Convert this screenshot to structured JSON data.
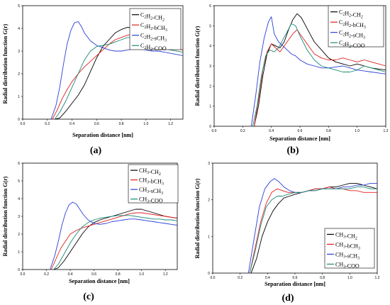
{
  "chart_data": [
    {
      "type": "line",
      "panel_label": "(a)",
      "xlabel": "Separation distance [nm]",
      "ylabel": "Radial distribution function G(r)",
      "xlim": [
        0.0,
        1.3
      ],
      "ylim": [
        0,
        5
      ],
      "xticks": [
        0.0,
        0.2,
        0.4,
        0.6,
        0.8,
        1.0,
        1.2
      ],
      "xticklabels": [
        "0.0",
        "0.2",
        "0.4",
        "0.6",
        "0.8",
        "1.0",
        "1.2"
      ],
      "yticks": [
        0,
        1,
        2,
        3,
        4,
        5
      ],
      "yticklabels": [
        "0",
        "1",
        "2",
        "3",
        "4",
        "5"
      ],
      "legend_position": "top-right",
      "series": [
        {
          "name": "C2H2-CH2",
          "color": "#000000",
          "x": [
            0.26,
            0.3,
            0.35,
            0.4,
            0.45,
            0.5,
            0.55,
            0.6,
            0.65,
            0.7,
            0.75,
            0.8,
            0.85,
            0.9,
            0.95,
            1.0,
            1.05,
            1.1,
            1.15,
            1.2,
            1.25,
            1.3
          ],
          "y": [
            0,
            0.05,
            0.35,
            0.7,
            1.05,
            1.5,
            2.1,
            2.7,
            3.2,
            3.5,
            3.8,
            3.95,
            4.05,
            4.0,
            3.9,
            3.75,
            3.6,
            3.4,
            3.25,
            3.15,
            3.1,
            3.05
          ]
        },
        {
          "name": "C2H2-bCH3",
          "color": "#e0201c",
          "x": [
            0.24,
            0.28,
            0.32,
            0.36,
            0.4,
            0.45,
            0.5,
            0.55,
            0.6,
            0.65,
            0.7,
            0.75,
            0.8,
            0.85,
            0.9,
            0.95,
            1.0,
            1.05,
            1.1,
            1.15,
            1.2,
            1.25,
            1.3
          ],
          "y": [
            0,
            0.4,
            0.9,
            1.3,
            1.65,
            2.0,
            2.3,
            2.55,
            2.8,
            3.05,
            3.3,
            3.5,
            3.6,
            3.7,
            3.75,
            3.7,
            3.55,
            3.4,
            3.3,
            3.2,
            3.15,
            3.1,
            3.05
          ]
        },
        {
          "name": "C2H2-sCH3",
          "color": "#2b3fd6",
          "x": [
            0.23,
            0.27,
            0.3,
            0.33,
            0.36,
            0.39,
            0.42,
            0.45,
            0.48,
            0.5,
            0.55,
            0.6,
            0.65,
            0.7,
            0.75,
            0.8,
            0.85,
            0.9,
            0.95,
            1.0,
            1.05,
            1.1,
            1.15,
            1.2,
            1.25,
            1.3
          ],
          "y": [
            0,
            0.6,
            1.4,
            2.4,
            3.3,
            3.9,
            4.25,
            4.3,
            4.05,
            3.8,
            3.45,
            3.25,
            3.15,
            3.05,
            3.0,
            3.0,
            3.05,
            3.1,
            3.1,
            3.05,
            3.0,
            3.0,
            2.95,
            2.9,
            2.85,
            2.8
          ]
        },
        {
          "name": "C2H2-COO",
          "color": "#1a8a78",
          "x": [
            0.26,
            0.3,
            0.35,
            0.4,
            0.45,
            0.5,
            0.55,
            0.6,
            0.65,
            0.7,
            0.75,
            0.8,
            0.85,
            0.9,
            0.95,
            1.0,
            1.05,
            1.1,
            1.15,
            1.2,
            1.25,
            1.3
          ],
          "y": [
            0,
            0.3,
            0.8,
            1.4,
            2.0,
            2.6,
            3.0,
            3.2,
            3.25,
            3.3,
            3.4,
            3.5,
            3.6,
            3.6,
            3.5,
            3.35,
            3.25,
            3.15,
            3.1,
            3.05,
            3.0,
            2.95
          ]
        }
      ]
    },
    {
      "type": "line",
      "panel_label": "(b)",
      "xlabel": "Separation distance [nm]",
      "ylabel": "Radial distribution function G(r)",
      "xlim": [
        0.0,
        1.2
      ],
      "ylim": [
        0,
        6
      ],
      "xticks": [
        0.0,
        0.2,
        0.4,
        0.6,
        0.8,
        1.0,
        1.2
      ],
      "xticklabels": [
        "0.0",
        "0.2",
        "0.4",
        "0.6",
        "0.8",
        "1.0",
        "1.2"
      ],
      "yticks": [
        0,
        1,
        2,
        3,
        4,
        5,
        6
      ],
      "yticklabels": [
        "0",
        "1",
        "2",
        "3",
        "4",
        "5",
        "6"
      ],
      "legend_position": "top-right",
      "series": [
        {
          "name": "C2H2-CH2",
          "color": "#000000",
          "x": [
            0.28,
            0.31,
            0.34,
            0.37,
            0.4,
            0.43,
            0.46,
            0.49,
            0.52,
            0.55,
            0.58,
            0.61,
            0.64,
            0.67,
            0.7,
            0.75,
            0.8,
            0.85,
            0.9,
            0.95,
            1.0,
            1.05,
            1.1,
            1.15,
            1.2
          ],
          "y": [
            0,
            1.0,
            2.5,
            3.6,
            4.1,
            4.0,
            3.9,
            4.2,
            4.8,
            5.3,
            5.6,
            5.4,
            5.0,
            4.6,
            4.2,
            3.8,
            3.4,
            3.2,
            3.1,
            3.0,
            3.1,
            3.0,
            2.9,
            2.85,
            2.8
          ]
        },
        {
          "name": "C2H2-bCH3",
          "color": "#e0201c",
          "x": [
            0.28,
            0.31,
            0.34,
            0.37,
            0.4,
            0.43,
            0.46,
            0.49,
            0.52,
            0.55,
            0.58,
            0.61,
            0.64,
            0.67,
            0.7,
            0.75,
            0.8,
            0.85,
            0.9,
            0.95,
            1.0,
            1.05,
            1.1,
            1.15,
            1.2
          ],
          "y": [
            0,
            1.3,
            2.8,
            3.7,
            4.1,
            3.9,
            3.7,
            4.0,
            4.3,
            4.6,
            4.8,
            4.5,
            4.2,
            3.9,
            3.6,
            3.4,
            3.3,
            3.3,
            3.4,
            3.3,
            3.2,
            3.3,
            3.2,
            3.1,
            3.0
          ]
        },
        {
          "name": "C2H2-sCH3",
          "color": "#2b3fd6",
          "x": [
            0.26,
            0.29,
            0.32,
            0.35,
            0.38,
            0.4,
            0.42,
            0.45,
            0.48,
            0.51,
            0.54,
            0.57,
            0.6,
            0.65,
            0.7,
            0.75,
            0.8,
            0.85,
            0.9,
            0.95,
            1.0,
            1.05,
            1.1,
            1.15,
            1.2
          ],
          "y": [
            0,
            1.5,
            3.2,
            4.4,
            5.2,
            5.45,
            4.6,
            4.2,
            4.0,
            3.8,
            3.6,
            3.5,
            3.3,
            3.1,
            3.0,
            2.9,
            2.9,
            2.95,
            3.0,
            2.9,
            2.8,
            2.75,
            2.7,
            2.65,
            2.6
          ]
        },
        {
          "name": "C2H2-COO",
          "color": "#1a8a78",
          "x": [
            0.27,
            0.3,
            0.33,
            0.36,
            0.39,
            0.42,
            0.45,
            0.48,
            0.51,
            0.54,
            0.57,
            0.6,
            0.65,
            0.7,
            0.75,
            0.8,
            0.85,
            0.9,
            0.95,
            1.0,
            1.05,
            1.1,
            1.15,
            1.2
          ],
          "y": [
            0,
            1.0,
            2.5,
            3.5,
            3.8,
            3.7,
            3.9,
            4.3,
            4.7,
            5.1,
            5.0,
            4.5,
            3.8,
            3.3,
            3.0,
            2.9,
            2.8,
            2.7,
            2.7,
            2.8,
            3.0,
            2.9,
            2.8,
            2.7
          ]
        }
      ]
    },
    {
      "type": "line",
      "panel_label": "(c)",
      "xlabel": "Separation distance [nm]",
      "ylabel": "Radial distribution function G(r)",
      "xlim": [
        0.0,
        1.3
      ],
      "ylim": [
        0,
        6
      ],
      "xticks": [
        0.0,
        0.2,
        0.4,
        0.6,
        0.8,
        1.0,
        1.2
      ],
      "xticklabels": [
        "0.0",
        "0.2",
        "0.4",
        "0.6",
        "0.8",
        "1.0",
        "1.2"
      ],
      "yticks": [
        0,
        1,
        2,
        3,
        4,
        5,
        6
      ],
      "yticklabels": [
        "0",
        "1",
        "2",
        "3",
        "4",
        "5",
        "6"
      ],
      "legend_position": "top-right",
      "series": [
        {
          "name": "CH3-CH2",
          "color": "#000000",
          "x": [
            0.26,
            0.3,
            0.35,
            0.4,
            0.45,
            0.5,
            0.55,
            0.6,
            0.65,
            0.7,
            0.75,
            0.8,
            0.85,
            0.9,
            0.95,
            1.0,
            1.05,
            1.1,
            1.15,
            1.2,
            1.25,
            1.3
          ],
          "y": [
            0,
            0.1,
            0.5,
            1.0,
            1.5,
            2.0,
            2.4,
            2.65,
            2.8,
            2.9,
            3.0,
            3.1,
            3.2,
            3.3,
            3.4,
            3.4,
            3.3,
            3.2,
            3.1,
            3.0,
            2.95,
            2.9
          ]
        },
        {
          "name": "CH3-bCH3",
          "color": "#e0201c",
          "x": [
            0.24,
            0.28,
            0.32,
            0.36,
            0.4,
            0.45,
            0.5,
            0.55,
            0.6,
            0.65,
            0.7,
            0.75,
            0.8,
            0.85,
            0.9,
            0.95,
            1.0,
            1.05,
            1.1,
            1.15,
            1.2,
            1.25,
            1.3
          ],
          "y": [
            0,
            0.6,
            1.2,
            1.6,
            2.0,
            2.2,
            2.35,
            2.45,
            2.55,
            2.65,
            2.75,
            2.85,
            2.95,
            3.05,
            3.15,
            3.2,
            3.2,
            3.15,
            3.1,
            3.05,
            3.0,
            2.95,
            2.9
          ]
        },
        {
          "name": "CH3-sCH3",
          "color": "#2b3fd6",
          "x": [
            0.23,
            0.27,
            0.3,
            0.33,
            0.36,
            0.39,
            0.42,
            0.45,
            0.48,
            0.51,
            0.55,
            0.6,
            0.65,
            0.7,
            0.75,
            0.8,
            0.85,
            0.9,
            0.95,
            1.0,
            1.05,
            1.1,
            1.15,
            1.2,
            1.25,
            1.3
          ],
          "y": [
            0,
            0.8,
            1.6,
            2.5,
            3.2,
            3.65,
            3.8,
            3.7,
            3.4,
            3.1,
            2.8,
            2.6,
            2.55,
            2.6,
            2.7,
            2.75,
            2.8,
            2.85,
            2.85,
            2.8,
            2.75,
            2.7,
            2.65,
            2.6,
            2.55,
            2.5
          ]
        },
        {
          "name": "CH3-COO",
          "color": "#1a8a78",
          "x": [
            0.26,
            0.3,
            0.35,
            0.4,
            0.45,
            0.5,
            0.55,
            0.6,
            0.65,
            0.7,
            0.75,
            0.8,
            0.85,
            0.9,
            0.95,
            1.0,
            1.05,
            1.1,
            1.15,
            1.2,
            1.25,
            1.3
          ],
          "y": [
            0,
            0.3,
            0.9,
            1.5,
            2.0,
            2.4,
            2.65,
            2.8,
            2.9,
            2.95,
            3.0,
            3.05,
            3.05,
            3.05,
            3.0,
            2.95,
            2.9,
            2.85,
            2.85,
            2.8,
            2.8,
            2.75
          ]
        }
      ]
    },
    {
      "type": "line",
      "panel_label": "(d)",
      "xlabel": "Separation distance [nm]",
      "ylabel": "Radial distribution function G(r)",
      "xlim": [
        0.0,
        1.2
      ],
      "ylim": [
        0,
        3
      ],
      "xticks": [
        0.0,
        0.2,
        0.4,
        0.6,
        0.8,
        1.0,
        1.2
      ],
      "xticklabels": [
        "0.0",
        "0.2",
        "0.4",
        "0.6",
        "0.8",
        "1.0",
        "1.2"
      ],
      "yticks": [
        0,
        1,
        2,
        3
      ],
      "yticklabels": [
        "0",
        "1",
        "2",
        "3"
      ],
      "legend_position": "bottom-right",
      "series": [
        {
          "name": "CH3-CH2",
          "color": "#000000",
          "x": [
            0.28,
            0.32,
            0.36,
            0.4,
            0.44,
            0.48,
            0.52,
            0.56,
            0.6,
            0.65,
            0.7,
            0.75,
            0.8,
            0.85,
            0.9,
            0.95,
            1.0,
            1.05,
            1.1,
            1.15,
            1.2
          ],
          "y": [
            0,
            0.4,
            1.0,
            1.4,
            1.7,
            1.9,
            2.05,
            2.1,
            2.15,
            2.2,
            2.25,
            2.3,
            2.3,
            2.35,
            2.35,
            2.4,
            2.45,
            2.45,
            2.4,
            2.35,
            2.3
          ]
        },
        {
          "name": "CH3-bCH3",
          "color": "#e0201c",
          "x": [
            0.27,
            0.31,
            0.35,
            0.39,
            0.43,
            0.47,
            0.51,
            0.55,
            0.6,
            0.65,
            0.7,
            0.75,
            0.8,
            0.85,
            0.9,
            0.95,
            1.0,
            1.05,
            1.1,
            1.15,
            1.2
          ],
          "y": [
            0,
            0.7,
            1.4,
            1.9,
            2.2,
            2.3,
            2.25,
            2.2,
            2.2,
            2.2,
            2.25,
            2.3,
            2.3,
            2.35,
            2.3,
            2.3,
            2.25,
            2.25,
            2.2,
            2.2,
            2.2
          ]
        },
        {
          "name": "CH3-sCH3",
          "color": "#2b3fd6",
          "x": [
            0.26,
            0.3,
            0.34,
            0.38,
            0.42,
            0.45,
            0.48,
            0.52,
            0.56,
            0.6,
            0.65,
            0.7,
            0.75,
            0.8,
            0.85,
            0.9,
            0.95,
            1.0,
            1.05,
            1.1,
            1.15,
            1.2
          ],
          "y": [
            0,
            0.9,
            1.8,
            2.3,
            2.5,
            2.58,
            2.5,
            2.35,
            2.25,
            2.2,
            2.2,
            2.25,
            2.25,
            2.3,
            2.3,
            2.3,
            2.35,
            2.35,
            2.4,
            2.4,
            2.45,
            2.45
          ]
        },
        {
          "name": "CH3-COO",
          "color": "#1a8a78",
          "x": [
            0.27,
            0.31,
            0.35,
            0.39,
            0.43,
            0.47,
            0.51,
            0.55,
            0.6,
            0.65,
            0.7,
            0.75,
            0.8,
            0.85,
            0.9,
            0.95,
            1.0,
            1.05,
            1.1,
            1.15,
            1.2
          ],
          "y": [
            0,
            0.6,
            1.3,
            1.8,
            2.0,
            2.1,
            2.1,
            2.15,
            2.2,
            2.2,
            2.25,
            2.25,
            2.3,
            2.3,
            2.3,
            2.3,
            2.3,
            2.35,
            2.35,
            2.3,
            2.3
          ]
        }
      ]
    }
  ]
}
